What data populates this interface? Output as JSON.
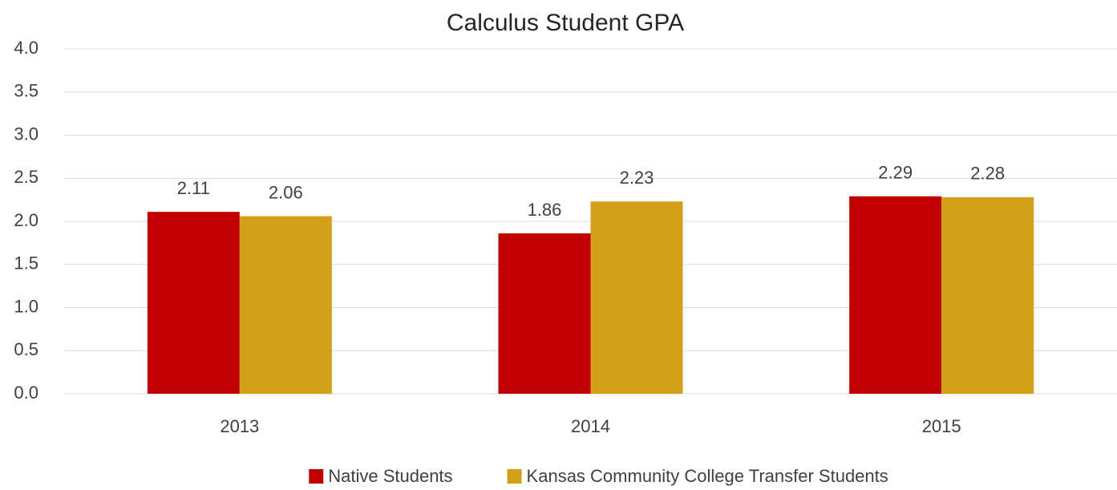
{
  "chart_data": {
    "type": "bar",
    "title": "Calculus Student GPA",
    "categories": [
      "2013",
      "2014",
      "2015"
    ],
    "series": [
      {
        "name": "Native Students",
        "color": "#c00000",
        "values": [
          2.11,
          1.86,
          2.29
        ]
      },
      {
        "name": "Kansas Community College Transfer Students",
        "color": "#d4a017",
        "values": [
          2.06,
          2.23,
          2.28
        ]
      }
    ],
    "ylim": [
      0,
      4
    ],
    "yticks": [
      {
        "value": 0,
        "label": "0.0"
      },
      0.5,
      {
        "value": 1,
        "label": "1.0"
      },
      1.5,
      {
        "value": 2,
        "label": "2.0"
      },
      2.5,
      {
        "value": 3,
        "label": "3.0"
      },
      3.5,
      {
        "value": 4,
        "label": "4.0"
      }
    ],
    "grid": true,
    "legend": "bottom"
  }
}
